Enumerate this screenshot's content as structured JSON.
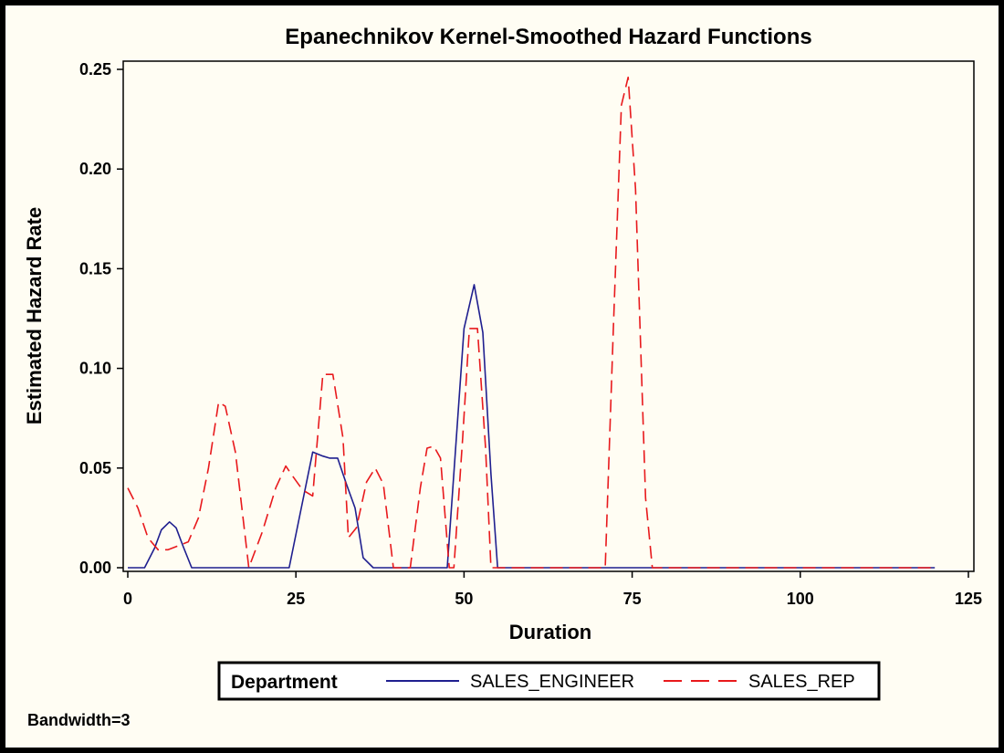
{
  "chart_data": {
    "type": "line",
    "title": "Epanechnikov Kernel-Smoothed Hazard Functions",
    "xlabel": "Duration",
    "ylabel": "Estimated Hazard Rate",
    "xlim": [
      0,
      125
    ],
    "ylim": [
      0,
      0.25
    ],
    "xticks": [
      "0",
      "25",
      "50",
      "75",
      "100",
      "125"
    ],
    "yticks": [
      "0.00",
      "0.05",
      "0.10",
      "0.15",
      "0.20",
      "0.25"
    ],
    "grid": false,
    "legend": {
      "title": "Department",
      "placement": "bottom"
    },
    "footnote": "Bandwidth=3",
    "series": [
      {
        "name": "SALES_ENGINEER",
        "color": "#1f1f8f",
        "style": "solid",
        "points": [
          [
            0,
            0
          ],
          [
            2.5,
            0
          ],
          [
            4,
            0.01
          ],
          [
            5,
            0.019
          ],
          [
            6.2,
            0.023
          ],
          [
            7.2,
            0.02
          ],
          [
            8.2,
            0.011
          ],
          [
            9.5,
            0
          ],
          [
            24,
            0
          ],
          [
            25.5,
            0.025
          ],
          [
            27.5,
            0.058
          ],
          [
            29,
            0.056
          ],
          [
            30,
            0.055
          ],
          [
            31.2,
            0.055
          ],
          [
            32.5,
            0.042
          ],
          [
            33.8,
            0.03
          ],
          [
            35,
            0.005
          ],
          [
            36.5,
            0
          ],
          [
            47.5,
            0
          ],
          [
            50,
            0.12
          ],
          [
            51.5,
            0.142
          ],
          [
            52.8,
            0.118
          ],
          [
            54,
            0.047
          ],
          [
            55,
            0
          ],
          [
            120,
            0
          ]
        ]
      },
      {
        "name": "SALES_REP",
        "color": "#e8191c",
        "style": "dashed",
        "points": [
          [
            0,
            0.04
          ],
          [
            1.5,
            0.03
          ],
          [
            3,
            0.015
          ],
          [
            4.5,
            0.009
          ],
          [
            6,
            0.009
          ],
          [
            7.5,
            0.011
          ],
          [
            9,
            0.013
          ],
          [
            10.5,
            0.025
          ],
          [
            12,
            0.05
          ],
          [
            13.5,
            0.083
          ],
          [
            14.5,
            0.081
          ],
          [
            16,
            0.058
          ],
          [
            18,
            0
          ],
          [
            20,
            0.018
          ],
          [
            22,
            0.04
          ],
          [
            23.5,
            0.051
          ],
          [
            24.5,
            0.046
          ],
          [
            26,
            0.039
          ],
          [
            27.5,
            0.036
          ],
          [
            29,
            0.097
          ],
          [
            30.5,
            0.097
          ],
          [
            32,
            0.065
          ],
          [
            32.8,
            0.015
          ],
          [
            34,
            0.02
          ],
          [
            35.5,
            0.043
          ],
          [
            36.8,
            0.05
          ],
          [
            38,
            0.042
          ],
          [
            39.5,
            0
          ],
          [
            42,
            0
          ],
          [
            43.5,
            0.04
          ],
          [
            44.5,
            0.06
          ],
          [
            45.5,
            0.061
          ],
          [
            46.5,
            0.055
          ],
          [
            47.8,
            0
          ],
          [
            48.5,
            0
          ],
          [
            49.8,
            0.065
          ],
          [
            50.8,
            0.12
          ],
          [
            52,
            0.12
          ],
          [
            53.2,
            0.06
          ],
          [
            54,
            0
          ],
          [
            71,
            0
          ],
          [
            72.2,
            0.12
          ],
          [
            73.4,
            0.232
          ],
          [
            74.4,
            0.246
          ],
          [
            75.5,
            0.19
          ],
          [
            77,
            0.035
          ],
          [
            78,
            0
          ],
          [
            120,
            0
          ]
        ]
      }
    ]
  }
}
